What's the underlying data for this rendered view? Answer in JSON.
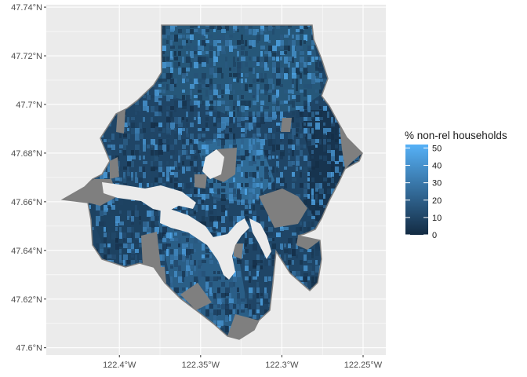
{
  "map": {
    "y_axis_labels": [
      "47.74°N",
      "47.72°N",
      "47.7°N",
      "47.68°N",
      "47.66°N",
      "47.64°N",
      "47.62°N",
      "47.6°N"
    ],
    "y_axis_values": [
      47.74,
      47.72,
      47.7,
      47.68,
      47.66,
      47.64,
      47.62,
      47.6
    ],
    "x_axis_labels": [
      "122.4°W",
      "122.35°W",
      "122.3°W",
      "122.25°W"
    ],
    "x_axis_values": [
      -122.4,
      -122.35,
      -122.3,
      -122.25
    ],
    "xlim": [
      -122.445,
      -122.236
    ],
    "ylim": [
      47.597,
      47.741
    ],
    "panel_background": "#ebebeb",
    "grid_color": "#ffffff",
    "missing_color": "#7f7f7f",
    "fill_low": "#132b43",
    "fill_high": "#56b1f7"
  },
  "legend": {
    "title": "% non-rel households",
    "labels": [
      "50",
      "40",
      "30",
      "20",
      "10",
      "0"
    ],
    "values": [
      50,
      40,
      30,
      20,
      10,
      0
    ],
    "range": [
      0,
      52
    ],
    "position": "right"
  }
}
